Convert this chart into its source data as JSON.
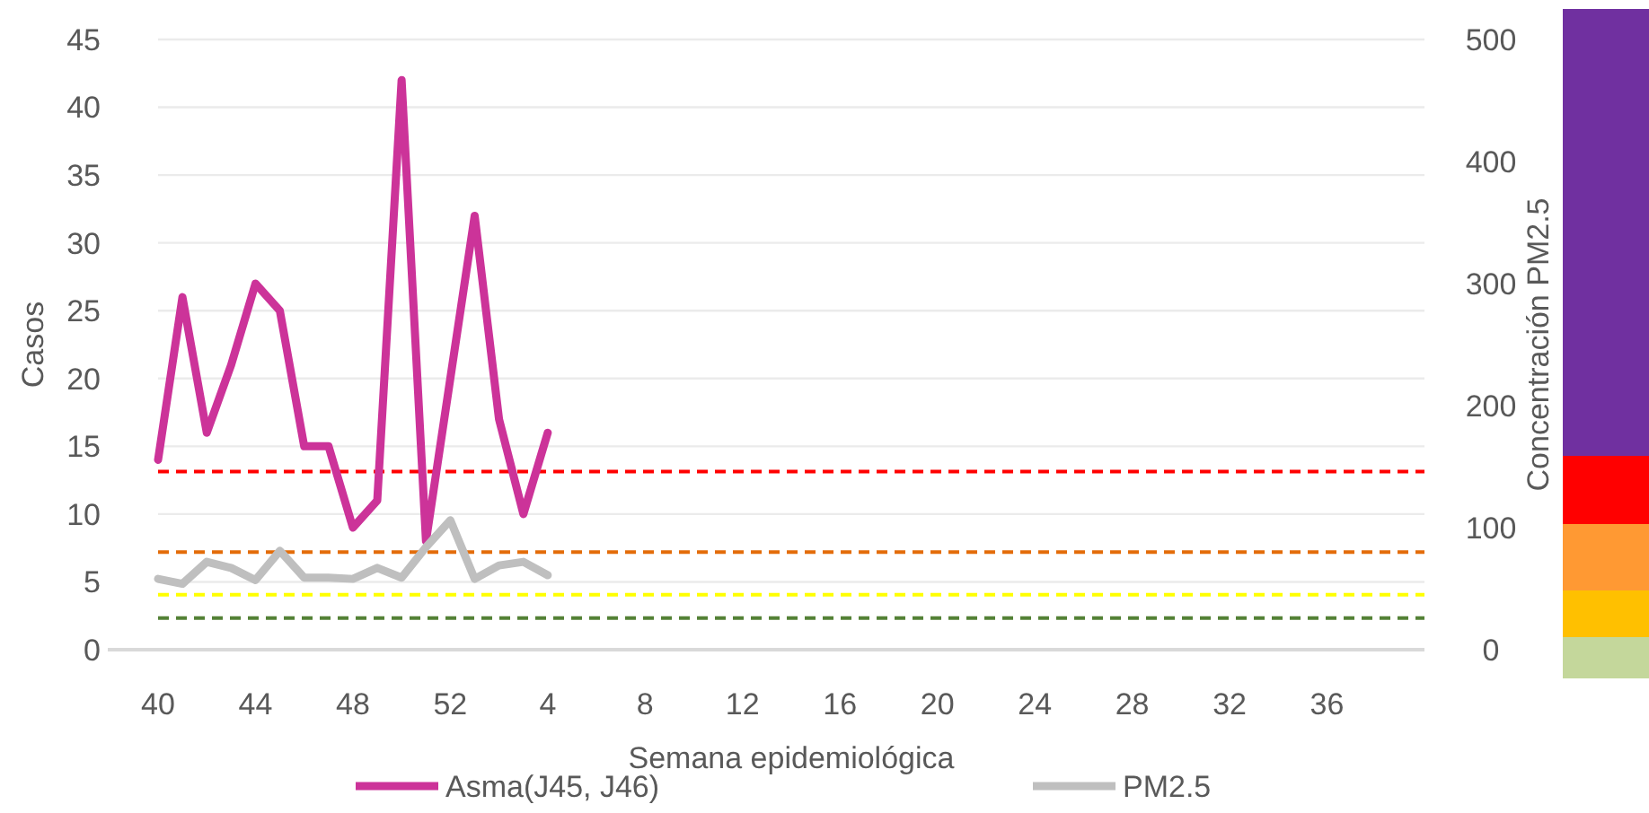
{
  "chart_data": {
    "type": "line",
    "xlabel": "Semana epidemiológica",
    "ylabel": "Casos",
    "y2label": "Concentración PM2.5",
    "categories": [
      "40",
      null,
      null,
      null,
      "44",
      null,
      null,
      null,
      "48",
      null,
      null,
      null,
      "52",
      null,
      null,
      null,
      "4",
      null,
      null,
      null,
      "8",
      null,
      null,
      null,
      "12",
      null,
      null,
      null,
      "16",
      null,
      null,
      null,
      "20",
      null,
      null,
      null,
      "24",
      null,
      null,
      null,
      "28",
      null,
      null,
      null,
      "32",
      null,
      null,
      null,
      "36",
      null,
      null,
      null,
      null
    ],
    "series": [
      {
        "name": "Asma(J45, J46)",
        "color": "#cc3399",
        "values": [
          14,
          26,
          16,
          21,
          27,
          25,
          15,
          15,
          9,
          11,
          42,
          8,
          20,
          32,
          17,
          10,
          16,
          null,
          null,
          null,
          null,
          null,
          null,
          null,
          null,
          null,
          null,
          null,
          null,
          null,
          null,
          null,
          null,
          null,
          null,
          null,
          null,
          null,
          null,
          null,
          null,
          null,
          null,
          null,
          null,
          null,
          null,
          null,
          null,
          null,
          null,
          null,
          null
        ]
      },
      {
        "name": "PM2.5",
        "color": "#bfbfbf",
        "axis": "y2",
        "values": [
          58,
          54,
          72,
          67,
          57,
          81,
          59,
          59,
          58,
          67,
          59,
          84,
          106,
          58,
          69,
          72,
          61,
          null,
          null,
          null,
          null,
          null,
          null,
          null,
          null,
          null,
          null,
          null,
          null,
          null,
          null,
          null,
          null,
          null,
          null,
          null,
          null,
          null,
          null,
          null,
          null,
          null,
          null,
          null,
          null,
          null,
          null,
          null,
          null,
          null,
          null,
          null,
          null
        ]
      }
    ],
    "ylim": [
      0,
      45
    ],
    "yticks": [
      0,
      5,
      10,
      15,
      20,
      25,
      30,
      35,
      40,
      45
    ],
    "y2lim": [
      0,
      500
    ],
    "y2ticks": [
      0,
      100,
      200,
      300,
      400,
      500
    ],
    "ref_lines": [
      {
        "axis": "y2",
        "value": 146,
        "color": "#ff0000",
        "line_style": "dashed"
      },
      {
        "axis": "y2",
        "value": 80,
        "color": "#e36c09",
        "line_style": "dashed"
      },
      {
        "axis": "y2",
        "value": 45,
        "color": "#ffff00",
        "line_style": "dashed"
      },
      {
        "axis": "y2",
        "value": 26,
        "color": "#538135",
        "line_style": "dashed"
      }
    ],
    "grid": "y",
    "legend": "bottom",
    "marker": "none"
  }
}
